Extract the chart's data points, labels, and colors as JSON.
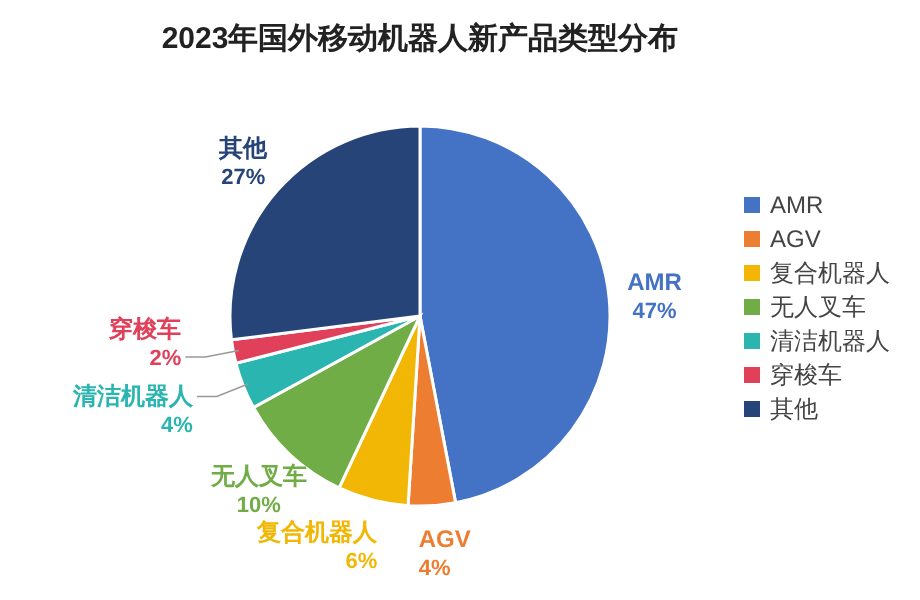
{
  "chart_data": {
    "type": "pie",
    "title": "2023年国外移动机器人新产品类型分布",
    "categories": [
      "AMR",
      "AGV",
      "复合机器人",
      "无人叉车",
      "清洁机器人",
      "穿梭车",
      "其他"
    ],
    "values": [
      47,
      4,
      6,
      10,
      4,
      2,
      27
    ],
    "colors": [
      "#4472c4",
      "#ed7d31",
      "#f2b705",
      "#70ad47",
      "#2bb5b0",
      "#e0405a",
      "#264478"
    ],
    "value_labels": [
      "47%",
      "4%",
      "6%",
      "10%",
      "4%",
      "2%",
      "27%"
    ],
    "legend": "right"
  }
}
